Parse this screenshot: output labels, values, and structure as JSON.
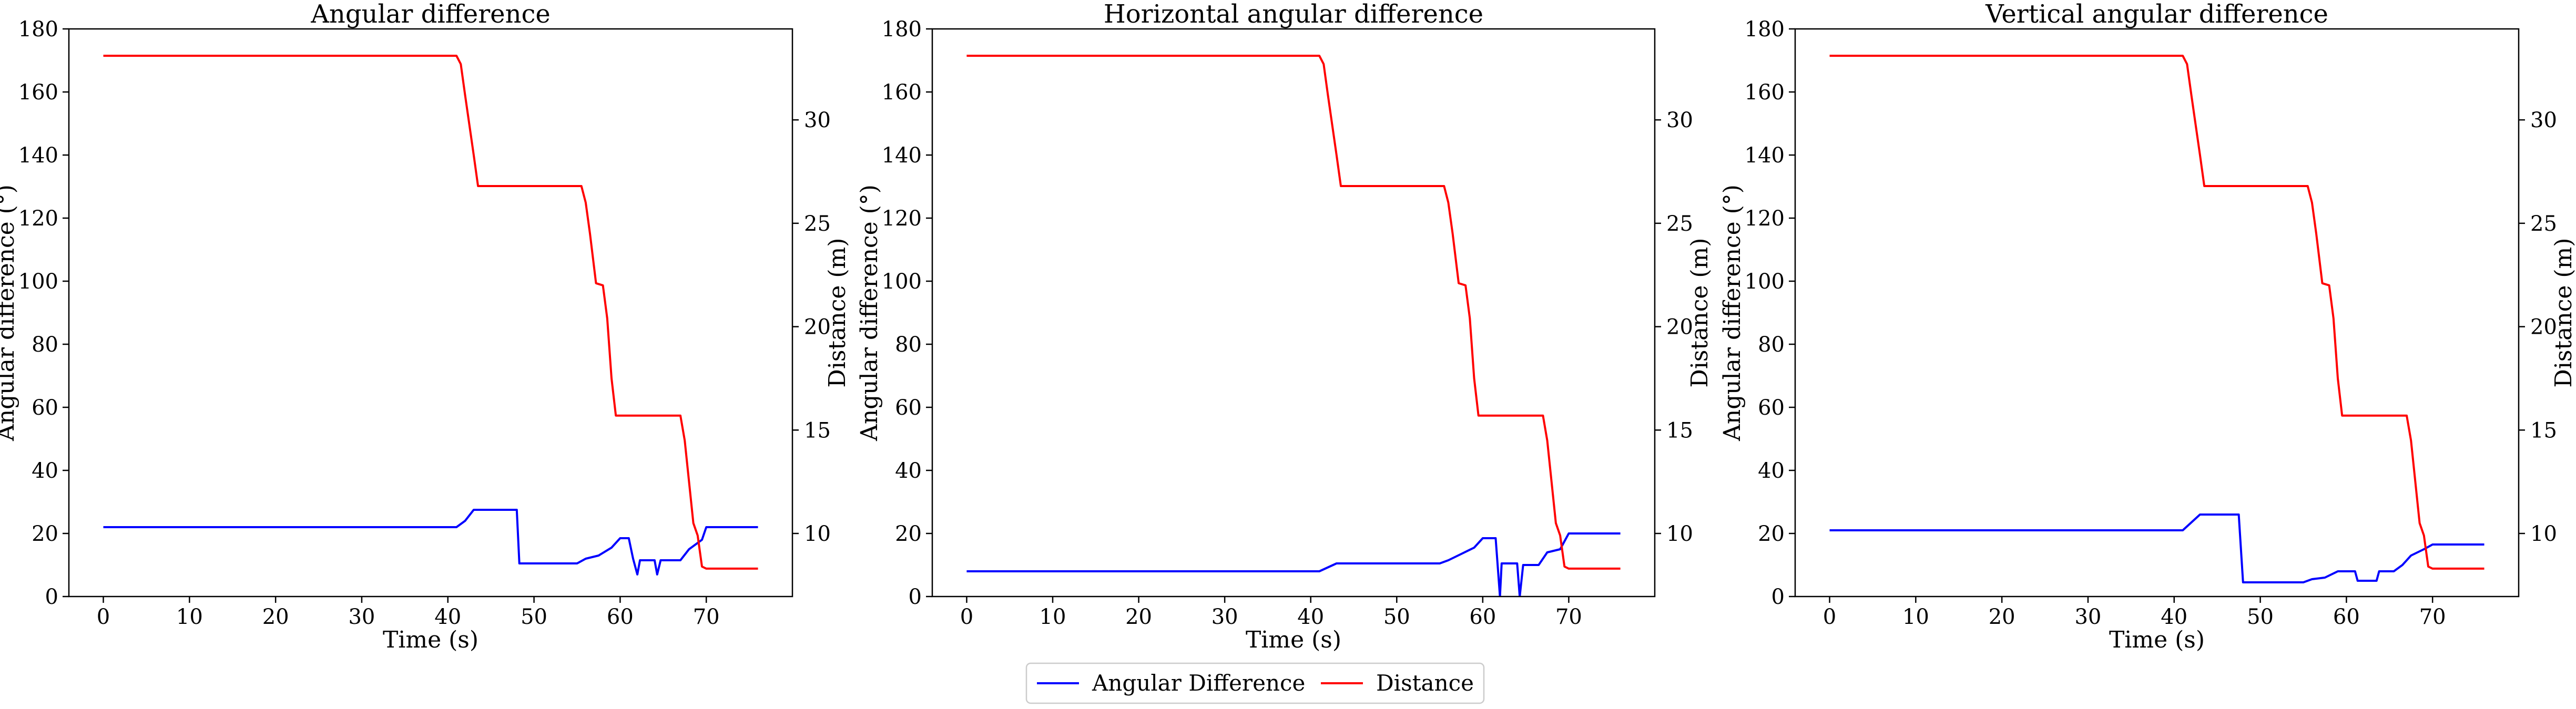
{
  "legend": {
    "items": [
      {
        "label": "Angular Difference",
        "color": "#0000ff"
      },
      {
        "label": "Distance",
        "color": "#ff0000"
      }
    ],
    "placement": "bottom-center"
  },
  "chart_data": [
    {
      "type": "line",
      "title": "Angular difference",
      "xlabel": "Time (s)",
      "ylabel": "Angular difference (°)",
      "y2label": "Distance (m)",
      "xlim": [
        -4,
        80
      ],
      "ylim": [
        0,
        180
      ],
      "y2lim": [
        6.95,
        34.4
      ],
      "xticks": [
        0,
        10,
        20,
        30,
        40,
        50,
        60,
        70
      ],
      "yticks": [
        0,
        20,
        40,
        60,
        80,
        100,
        120,
        140,
        160,
        180
      ],
      "y2ticks": [
        10,
        15,
        20,
        25,
        30
      ],
      "grid": false,
      "series": [
        {
          "name": "Angular Difference",
          "axis": "left",
          "color": "#0000ff",
          "x": [
            0,
            41,
            42,
            43,
            48,
            48.3,
            55,
            56,
            57.5,
            59,
            60,
            61,
            61.5,
            62,
            62.3,
            62.8,
            64,
            64.3,
            64.7,
            65,
            67,
            68,
            69.5,
            70,
            76
          ],
          "y": [
            22,
            22,
            24,
            27.5,
            27.5,
            10.5,
            10.5,
            12,
            13,
            15.5,
            18.5,
            18.5,
            12,
            7,
            11.5,
            11.5,
            11.5,
            7,
            11.5,
            11.5,
            11.5,
            15,
            18,
            22,
            22
          ]
        },
        {
          "name": "Distance",
          "axis": "right",
          "color": "#ff0000",
          "x": [
            0,
            41,
            41.5,
            42,
            43,
            43.5,
            55.5,
            56,
            56.5,
            57.2,
            58,
            58.5,
            59,
            59.5,
            60,
            67,
            67.5,
            68.5,
            69,
            69.5,
            70,
            76
          ],
          "y": [
            33.1,
            33.1,
            32.7,
            31.2,
            28.3,
            26.8,
            26.8,
            26,
            24.5,
            22.1,
            22,
            20.4,
            17.5,
            15.7,
            15.7,
            15.7,
            14.5,
            10.5,
            9.9,
            8.4,
            8.3,
            8.3
          ]
        }
      ]
    },
    {
      "type": "line",
      "title": "Horizontal angular difference",
      "xlabel": "Time (s)",
      "ylabel": "Angular difference (°)",
      "y2label": "Distance (m)",
      "xlim": [
        -4,
        80
      ],
      "ylim": [
        0,
        180
      ],
      "y2lim": [
        6.95,
        34.4
      ],
      "xticks": [
        0,
        10,
        20,
        30,
        40,
        50,
        60,
        70
      ],
      "yticks": [
        0,
        20,
        40,
        60,
        80,
        100,
        120,
        140,
        160,
        180
      ],
      "y2ticks": [
        10,
        15,
        20,
        25,
        30
      ],
      "grid": false,
      "series": [
        {
          "name": "Angular Difference",
          "axis": "left",
          "color": "#0000ff",
          "x": [
            0,
            41,
            43,
            55,
            56,
            57.5,
            59,
            60,
            61.5,
            62,
            62.2,
            62.7,
            64,
            64.3,
            64.7,
            65,
            66.5,
            67.5,
            69,
            70,
            76
          ],
          "y": [
            8,
            8,
            10.5,
            10.5,
            11.5,
            13.5,
            15.5,
            18.5,
            18.5,
            0,
            10.5,
            10.5,
            10.5,
            0,
            10,
            10,
            10,
            14,
            15,
            20,
            20
          ]
        },
        {
          "name": "Distance",
          "axis": "right",
          "color": "#ff0000",
          "x": [
            0,
            41,
            41.5,
            42,
            43,
            43.5,
            55.5,
            56,
            56.5,
            57.2,
            58,
            58.5,
            59,
            59.5,
            60,
            67,
            67.5,
            68.5,
            69,
            69.5,
            70,
            76
          ],
          "y": [
            33.1,
            33.1,
            32.7,
            31.2,
            28.3,
            26.8,
            26.8,
            26,
            24.5,
            22.1,
            22,
            20.4,
            17.5,
            15.7,
            15.7,
            15.7,
            14.5,
            10.5,
            9.9,
            8.4,
            8.3,
            8.3
          ]
        }
      ]
    },
    {
      "type": "line",
      "title": "Vertical angular difference",
      "xlabel": "Time (s)",
      "ylabel": "Angular difference (°)",
      "y2label": "Distance (m)",
      "xlim": [
        -4,
        80
      ],
      "ylim": [
        0,
        180
      ],
      "y2lim": [
        6.95,
        34.4
      ],
      "xticks": [
        0,
        10,
        20,
        30,
        40,
        50,
        60,
        70
      ],
      "yticks": [
        0,
        20,
        40,
        60,
        80,
        100,
        120,
        140,
        160,
        180
      ],
      "y2ticks": [
        10,
        15,
        20,
        25,
        30
      ],
      "grid": false,
      "series": [
        {
          "name": "Angular Difference",
          "axis": "left",
          "color": "#0000ff",
          "x": [
            0,
            41,
            43,
            47.5,
            48,
            55,
            56,
            57.5,
            59,
            60,
            61,
            61.3,
            63.5,
            63.8,
            65.5,
            66.5,
            67.5,
            69,
            70,
            76
          ],
          "y": [
            21,
            21,
            26,
            26,
            4.5,
            4.5,
            5.5,
            6,
            8,
            8,
            8,
            5,
            5,
            8,
            8,
            10,
            13,
            15,
            16.5,
            16.5
          ]
        },
        {
          "name": "Distance",
          "axis": "right",
          "color": "#ff0000",
          "x": [
            0,
            41,
            41.5,
            42,
            43,
            43.5,
            55.5,
            56,
            56.5,
            57.2,
            58,
            58.5,
            59,
            59.5,
            60,
            67,
            67.5,
            68.5,
            69,
            69.5,
            70,
            76
          ],
          "y": [
            33.1,
            33.1,
            32.7,
            31.2,
            28.3,
            26.8,
            26.8,
            26,
            24.5,
            22.1,
            22,
            20.4,
            17.5,
            15.7,
            15.7,
            15.7,
            14.5,
            10.5,
            9.9,
            8.4,
            8.3,
            8.3
          ]
        }
      ]
    }
  ]
}
